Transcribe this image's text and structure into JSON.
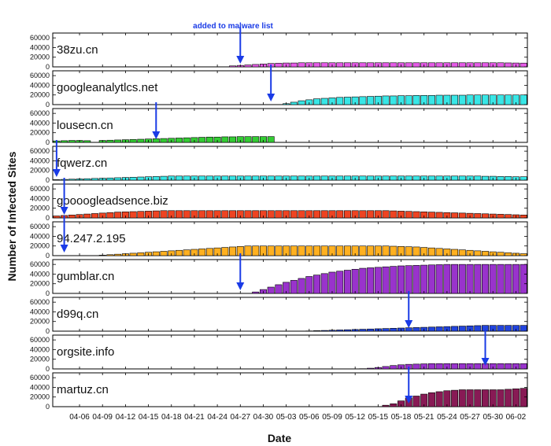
{
  "chart_data": {
    "type": "bar",
    "xlabel": "Date",
    "ylabel": "Number of Infected Sites",
    "annotation": "added to malware list",
    "arrow_color": "#1a3be6",
    "ylim": [
      0,
      70000
    ],
    "ytick_labels": [
      "0",
      "20000",
      "40000",
      "60000"
    ],
    "ytick_values": [
      0,
      20000,
      40000,
      60000
    ],
    "xtick_labels": [
      "04-06",
      "04-09",
      "04-12",
      "04-15",
      "04-18",
      "04-21",
      "04-24",
      "04-27",
      "04-30",
      "05-03",
      "05-06",
      "05-09",
      "05-12",
      "05-15",
      "05-18",
      "05-21",
      "05-24",
      "05-27",
      "05-30",
      "06-02"
    ],
    "xtick_day_index": [
      3,
      6,
      9,
      12,
      15,
      18,
      21,
      24,
      27,
      30,
      33,
      36,
      39,
      42,
      45,
      48,
      51,
      54,
      57,
      60
    ],
    "days_count": 62,
    "series": [
      {
        "name": "38zu.cn",
        "color": "#e45be6",
        "values": [
          0,
          0,
          0,
          0,
          0,
          0,
          0,
          0,
          0,
          0,
          0,
          0,
          0,
          0,
          0,
          0,
          0,
          0,
          0,
          0,
          0,
          0,
          0,
          2000,
          3000,
          4000,
          5000,
          6000,
          7000,
          7500,
          8000,
          8000,
          8500,
          8500,
          8500,
          8500,
          8500,
          8500,
          8500,
          8500,
          8500,
          8500,
          8500,
          8500,
          8500,
          8500,
          8500,
          8500,
          8500,
          8500,
          8500,
          8500,
          8500,
          8500,
          8500,
          8500,
          8500,
          8500,
          8500,
          8200,
          8000,
          7800
        ],
        "listed_day": 24
      },
      {
        "name": "googleanalytlcs.net",
        "color": "#38e6e6",
        "values": [
          0,
          0,
          0,
          0,
          0,
          0,
          0,
          0,
          0,
          0,
          0,
          0,
          0,
          0,
          0,
          0,
          0,
          0,
          0,
          0,
          0,
          0,
          0,
          0,
          0,
          0,
          0,
          0,
          0,
          0,
          2000,
          5000,
          8000,
          10000,
          12000,
          13000,
          14000,
          15000,
          15500,
          16000,
          16500,
          17000,
          17500,
          18000,
          18000,
          18500,
          18500,
          19000,
          19000,
          19000,
          19500,
          19500,
          19500,
          19500,
          20000,
          20000,
          20000,
          20000,
          20000,
          20000,
          20000,
          20000
        ],
        "listed_day": 28
      },
      {
        "name": "lousecn.cn",
        "color": "#33cc33",
        "values": [
          3000,
          3500,
          4000,
          4000,
          3500,
          0,
          4000,
          4500,
          5000,
          5500,
          6000,
          6500,
          7000,
          7500,
          8000,
          8500,
          9000,
          9500,
          10000,
          10500,
          11000,
          11000,
          11500,
          11500,
          12000,
          12000,
          12000,
          12000,
          12000,
          0,
          0,
          0,
          0,
          0,
          0,
          0,
          0,
          0,
          0,
          0,
          0,
          0,
          0,
          0,
          0,
          0,
          0,
          0,
          0,
          0,
          0,
          0,
          0,
          0,
          0,
          0,
          0,
          0,
          0,
          0,
          0,
          0
        ],
        "listed_day": 13
      },
      {
        "name": "fqwerz.cn",
        "color": "#38e6e6",
        "values": [
          1000,
          1500,
          2000,
          2500,
          3000,
          3500,
          4000,
          4500,
          5000,
          5500,
          6000,
          6500,
          7000,
          7500,
          8000,
          8500,
          8500,
          8500,
          8500,
          8500,
          8500,
          8500,
          8500,
          8500,
          8500,
          8500,
          8500,
          8500,
          8500,
          8500,
          8500,
          8500,
          8500,
          8500,
          8500,
          8500,
          8500,
          8500,
          8500,
          8500,
          8500,
          8500,
          8500,
          8500,
          8500,
          8500,
          8500,
          8500,
          8500,
          8500,
          8500,
          8500,
          8500,
          8500,
          8500,
          8500,
          8000,
          8000,
          7500,
          7500,
          7000,
          7000
        ],
        "listed_day": 0
      },
      {
        "name": "goooogleadsence.biz",
        "color": "#ee4422",
        "values": [
          4000,
          5000,
          6000,
          7000,
          8000,
          9000,
          10000,
          11000,
          12000,
          12500,
          13000,
          13500,
          14000,
          14500,
          15000,
          15000,
          15000,
          15000,
          15000,
          15000,
          15000,
          15000,
          15000,
          15000,
          15000,
          15000,
          15000,
          15000,
          15000,
          15000,
          15000,
          15000,
          15000,
          15000,
          15000,
          15000,
          15000,
          15000,
          15000,
          15000,
          15000,
          15000,
          15000,
          15000,
          14500,
          14000,
          13500,
          13000,
          12500,
          12000,
          11500,
          11000,
          10500,
          10000,
          9500,
          9000,
          8500,
          8000,
          7500,
          7000,
          6500,
          6000
        ],
        "listed_day": 1
      },
      {
        "name": "94.247.2.195",
        "color": "#ffb020",
        "values": [
          0,
          0,
          0,
          0,
          0,
          0,
          1000,
          2000,
          3000,
          4000,
          5000,
          6000,
          7000,
          8000,
          9000,
          10000,
          11000,
          12000,
          13000,
          14000,
          15000,
          16000,
          17000,
          18000,
          19000,
          20000,
          20000,
          20000,
          20000,
          20000,
          20000,
          20000,
          20000,
          20000,
          20000,
          20000,
          20000,
          20000,
          20000,
          20000,
          20000,
          20000,
          20000,
          20000,
          19500,
          19000,
          18500,
          18000,
          17000,
          16000,
          15000,
          14000,
          13000,
          12000,
          11000,
          10000,
          9000,
          8000,
          7000,
          6000,
          5000,
          4000
        ],
        "listed_day": 1
      },
      {
        "name": "gumblar.cn",
        "color": "#9933cc",
        "values": [
          0,
          0,
          0,
          0,
          0,
          0,
          0,
          0,
          0,
          0,
          0,
          0,
          0,
          0,
          0,
          0,
          0,
          0,
          0,
          0,
          0,
          0,
          0,
          0,
          0,
          0,
          3000,
          8000,
          13000,
          18000,
          23000,
          27000,
          31000,
          35000,
          38000,
          41000,
          44000,
          46000,
          48000,
          50000,
          52000,
          53000,
          54000,
          55000,
          56000,
          57000,
          57500,
          58000,
          58500,
          59000,
          59500,
          60000,
          60000,
          60000,
          60000,
          60000,
          60000,
          60000,
          60000,
          60000,
          60000,
          60000
        ],
        "listed_day": 24
      },
      {
        "name": "d99q.cn",
        "color": "#2244dd",
        "values": [
          0,
          0,
          0,
          0,
          0,
          0,
          0,
          0,
          0,
          0,
          0,
          0,
          0,
          0,
          0,
          0,
          0,
          0,
          0,
          0,
          0,
          0,
          0,
          0,
          0,
          0,
          0,
          0,
          0,
          0,
          0,
          0,
          0,
          500,
          1000,
          1500,
          2000,
          2500,
          3000,
          3500,
          4000,
          4500,
          5000,
          5500,
          6000,
          6500,
          7000,
          7500,
          8000,
          8500,
          9000,
          9500,
          10000,
          10500,
          11000,
          11500,
          12000,
          12000,
          12000,
          12000,
          12000,
          12000
        ],
        "listed_day": 46
      },
      {
        "name": "orgsite.info",
        "color": "#9933cc",
        "values": [
          0,
          0,
          0,
          0,
          0,
          0,
          0,
          0,
          0,
          0,
          0,
          0,
          0,
          0,
          0,
          0,
          0,
          0,
          0,
          0,
          0,
          0,
          0,
          0,
          0,
          0,
          0,
          0,
          0,
          0,
          0,
          0,
          0,
          0,
          0,
          0,
          0,
          0,
          0,
          0,
          500,
          1500,
          3000,
          5000,
          7000,
          8500,
          9500,
          10000,
          10500,
          11000,
          11000,
          11000,
          11000,
          11000,
          11000,
          11000,
          11000,
          11000,
          11000,
          11000,
          11000,
          11000
        ],
        "listed_day": 56
      },
      {
        "name": "martuz.cn",
        "color": "#881a55",
        "values": [
          0,
          0,
          0,
          0,
          0,
          0,
          0,
          0,
          0,
          0,
          0,
          0,
          0,
          0,
          0,
          0,
          0,
          0,
          0,
          0,
          0,
          0,
          0,
          0,
          0,
          0,
          0,
          0,
          0,
          0,
          0,
          0,
          0,
          0,
          0,
          0,
          0,
          0,
          0,
          0,
          0,
          0,
          0,
          3000,
          6000,
          12000,
          18000,
          22000,
          26000,
          29000,
          31000,
          33000,
          34000,
          35000,
          35000,
          35000,
          35000,
          35000,
          35000,
          36000,
          37000,
          38000
        ],
        "listed_day": 46
      }
    ]
  }
}
